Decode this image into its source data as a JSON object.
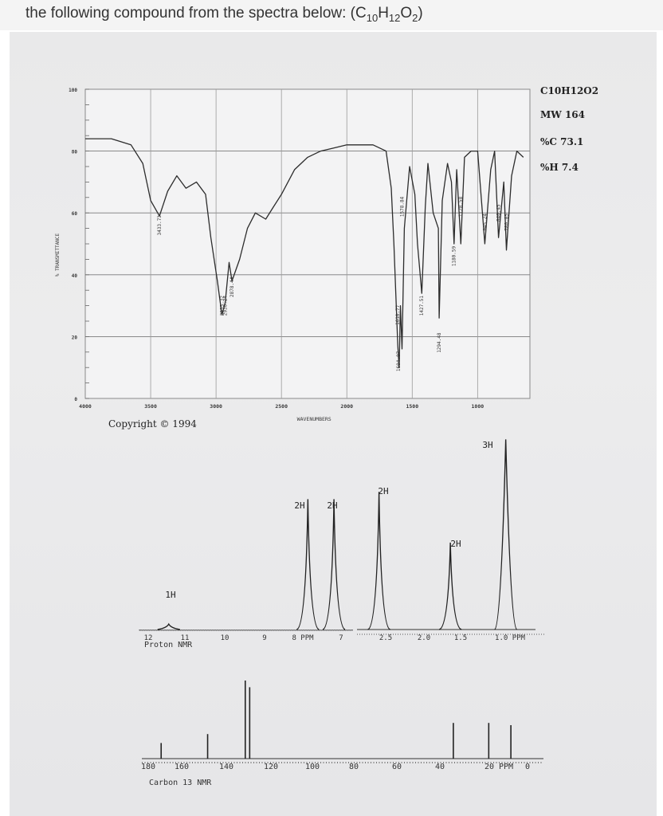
{
  "question": {
    "text_before": "the following compound from the spectra below: (C",
    "sub1": "10",
    "mid1": "H",
    "sub2": "12",
    "mid2": "O",
    "sub3": "2",
    "text_after": ")"
  },
  "ir": {
    "y_ticks": [
      "0",
      "20",
      "40",
      "60",
      "80",
      "100"
    ],
    "x_ticks": [
      "4000",
      "3500",
      "3000",
      "2500",
      "2000",
      "1500",
      "1000"
    ],
    "ylabel": "% TRANSMITTANCE",
    "xlabel": "WAVENUMBERS",
    "copyright": "Copyright © 1994",
    "info": [
      "C10H12O2",
      "MW 164",
      "%C 73.1",
      "%H 7.4"
    ],
    "peak_labels": [
      "3433.73",
      "2955.32",
      "2930.24",
      "2878.44",
      "1604.87",
      "1610.77",
      "1578.84",
      "1427.51",
      "1294.48",
      "1180.59",
      "1128.58",
      "945.24",
      "780.85",
      "840.45"
    ]
  },
  "hnmr": {
    "title": "Proton NMR",
    "x_ticks": [
      "12",
      "11",
      "10",
      "9",
      "8 PPM",
      "7",
      "2.5",
      "2.0",
      "1.5",
      "1.0 PPM"
    ],
    "integrals": [
      "1H",
      "2H",
      "2H",
      "2H",
      "2H",
      "3H"
    ]
  },
  "cnmr": {
    "title": "Carbon 13 NMR",
    "x_ticks": [
      "180",
      "160",
      "140",
      "120",
      "100",
      "80",
      "60",
      "40",
      "20 PPM",
      "0"
    ]
  },
  "chart_data": [
    {
      "type": "line",
      "title": "",
      "xlabel": "WAVENUMBERS",
      "ylabel": "% TRANSMITTANCE",
      "xlim": [
        4000,
        600
      ],
      "ylim": [
        0,
        100
      ],
      "grid": true,
      "series": [
        {
          "x": [
            4000,
            3800,
            3650,
            3560,
            3500,
            3433,
            3370,
            3300,
            3230,
            3150,
            3080,
            3040,
            2990,
            2955,
            2930,
            2900,
            2878,
            2820,
            2760,
            2700,
            2620,
            2560,
            2500,
            2400,
            2300,
            2200,
            2100,
            2000,
            1900,
            1800,
            1700,
            1660,
            1640,
            1610,
            1600,
            1590,
            1578,
            1560,
            1520,
            1480,
            1460,
            1427,
            1400,
            1380,
            1340,
            1300,
            1294,
            1270,
            1230,
            1200,
            1180,
            1160,
            1128,
            1100,
            1050,
            1000,
            945,
            900,
            870,
            840,
            800,
            780,
            740,
            700,
            650
          ],
          "y": [
            84,
            84,
            82,
            76,
            64,
            59,
            67,
            72,
            68,
            70,
            66,
            52,
            38,
            27,
            31,
            44,
            38,
            45,
            55,
            60,
            58,
            62,
            66,
            74,
            78,
            80,
            81,
            82,
            82,
            82,
            80,
            68,
            50,
            17,
            10,
            30,
            16,
            55,
            75,
            66,
            50,
            34,
            62,
            76,
            60,
            55,
            26,
            64,
            76,
            70,
            50,
            74,
            50,
            78,
            80,
            80,
            50,
            74,
            80,
            52,
            70,
            48,
            72,
            80,
            78
          ]
        }
      ]
    },
    {
      "type": "line",
      "title": "Proton NMR",
      "xlabel": "PPM",
      "note": "segmented axis: 12–7 ppm and 2.7–0.6 ppm",
      "series": [
        {
          "x": [
            11.4,
            7.88,
            7.22,
            2.62,
            1.68,
            0.95
          ],
          "y": [
            0.3,
            7.2,
            7.2,
            7.6,
            4.8,
            10.5
          ]
        }
      ]
    },
    {
      "type": "line",
      "title": "Carbon 13 NMR",
      "xlabel": "PPM",
      "xlim": [
        180,
        0
      ],
      "series": [
        {
          "x": [
            172,
            151,
            134,
            132,
            40,
            24,
            14
          ],
          "y": [
            1.4,
            2.2,
            7.0,
            6.4,
            3.2,
            3.2,
            3.0
          ]
        }
      ]
    }
  ]
}
